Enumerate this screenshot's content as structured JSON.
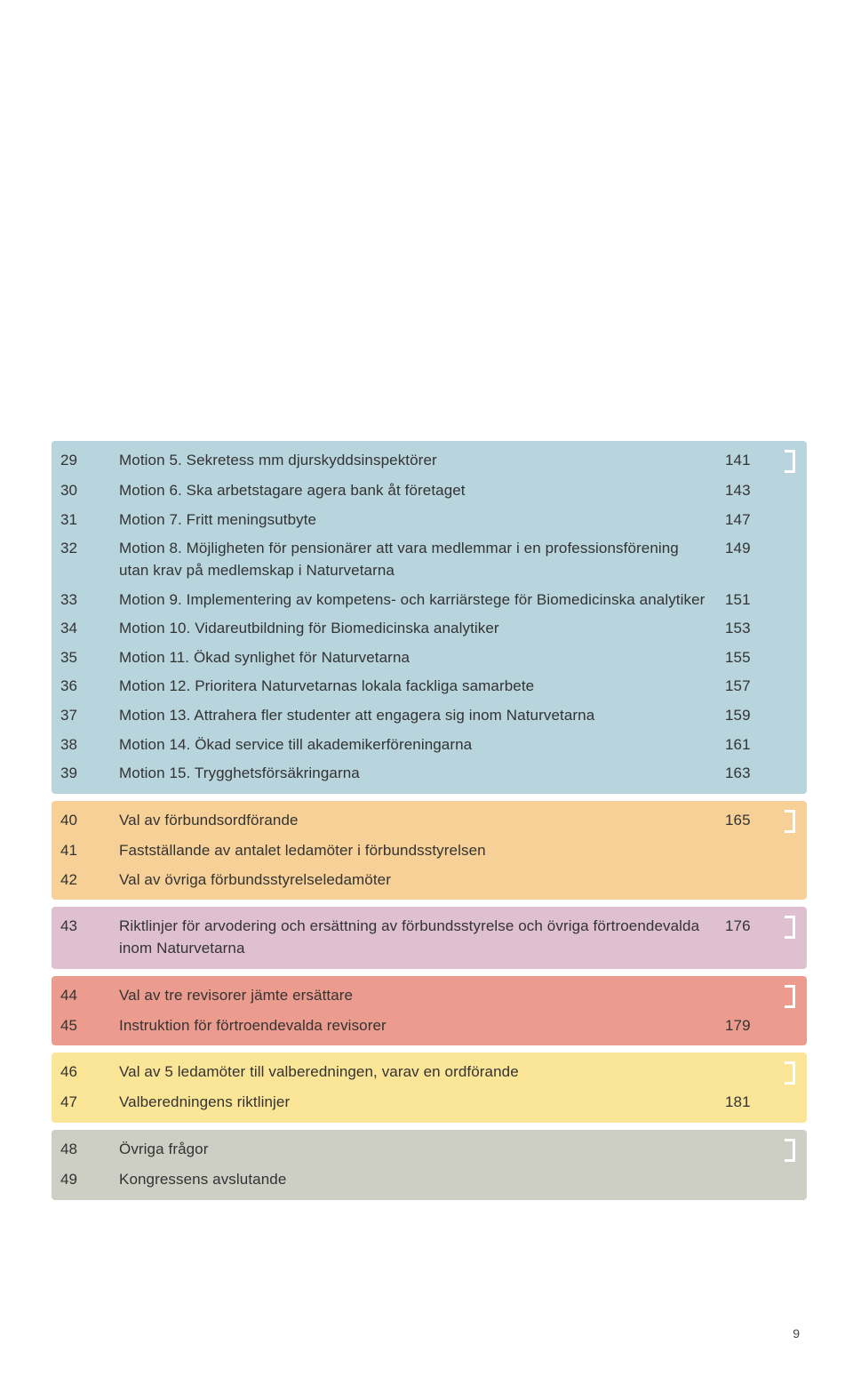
{
  "colors": {
    "blue": "#b8d4dc",
    "orange": "#f6d097",
    "mauve": "#dfc0d1",
    "red": "#ec9c8e",
    "yellow": "#fbe597",
    "gray": "#cdcec4",
    "cap_blue": "#b8d4dc",
    "cap_orange": "#f6d097",
    "cap_mauve": "#dfc0d1",
    "cap_red": "#ec9c8e",
    "cap_yellow": "#fbe597",
    "cap_gray": "#cdcec4"
  },
  "page_number": "9",
  "sections": [
    {
      "bg": "blue",
      "rows": [
        {
          "n": "29",
          "t": "Motion 5. Sekretess mm djurskyddsinspektörer",
          "p": "141"
        },
        {
          "n": "30",
          "t": "Motion 6. Ska arbetstagare agera bank åt företaget",
          "p": "143"
        },
        {
          "n": "31",
          "t": "Motion 7. Fritt meningsutbyte",
          "p": "147"
        },
        {
          "n": "32",
          "t": "Motion 8. Möjligheten för pensionärer att vara medlemmar i en professionsförening utan krav på medlemskap i Naturvetarna",
          "p": "149"
        },
        {
          "n": "33",
          "t": "Motion 9. Implementering av kompetens- och karriärstege för Biomedicinska analytiker",
          "p": "151"
        },
        {
          "n": "34",
          "t": "Motion 10. Vidareutbildning för Biomedicinska analytiker",
          "p": "153"
        },
        {
          "n": "35",
          "t": "Motion 11. Ökad synlighet för Naturvetarna",
          "p": "155"
        },
        {
          "n": "36",
          "t": "Motion 12. Prioritera Naturvetarnas lokala fackliga samarbete",
          "p": "157"
        },
        {
          "n": "37",
          "t": "Motion 13. Attrahera fler studenter att engagera sig inom Naturvetarna",
          "p": "159"
        },
        {
          "n": "38",
          "t": "Motion 14. Ökad service till akademikerföreningarna",
          "p": "161"
        },
        {
          "n": "39",
          "t": "Motion 15. Trygghetsförsäkringarna",
          "p": "163"
        }
      ]
    },
    {
      "bg": "orange",
      "rows": [
        {
          "n": "40",
          "t": "Val av förbundsordförande",
          "p": "165"
        },
        {
          "n": "41",
          "t": "Fastställande av antalet ledamöter i förbundsstyrelsen",
          "p": ""
        },
        {
          "n": "42",
          "t": "Val av övriga förbundsstyrelseledamöter",
          "p": ""
        }
      ]
    },
    {
      "bg": "mauve",
      "rows": [
        {
          "n": "43",
          "t": "Riktlinjer för arvodering och ersättning av förbundsstyrelse och övriga förtroendevalda inom Naturvetarna",
          "p": "176"
        }
      ]
    },
    {
      "bg": "red",
      "rows": [
        {
          "n": "44",
          "t": "Val av tre revisorer jämte ersättare",
          "p": ""
        },
        {
          "n": "45",
          "t": "Instruktion för förtroendevalda revisorer",
          "p": "179"
        }
      ]
    },
    {
      "bg": "yellow",
      "rows": [
        {
          "n": "46",
          "t": "Val av 5 ledamöter till valberedningen, varav en ordförande",
          "p": ""
        },
        {
          "n": "47",
          "t": "Valberedningens riktlinjer",
          "p": "181"
        }
      ]
    },
    {
      "bg": "gray",
      "rows": [
        {
          "n": "48",
          "t": "Övriga frågor",
          "p": ""
        },
        {
          "n": "49",
          "t": "Kongressens avslutande",
          "p": ""
        }
      ]
    }
  ]
}
